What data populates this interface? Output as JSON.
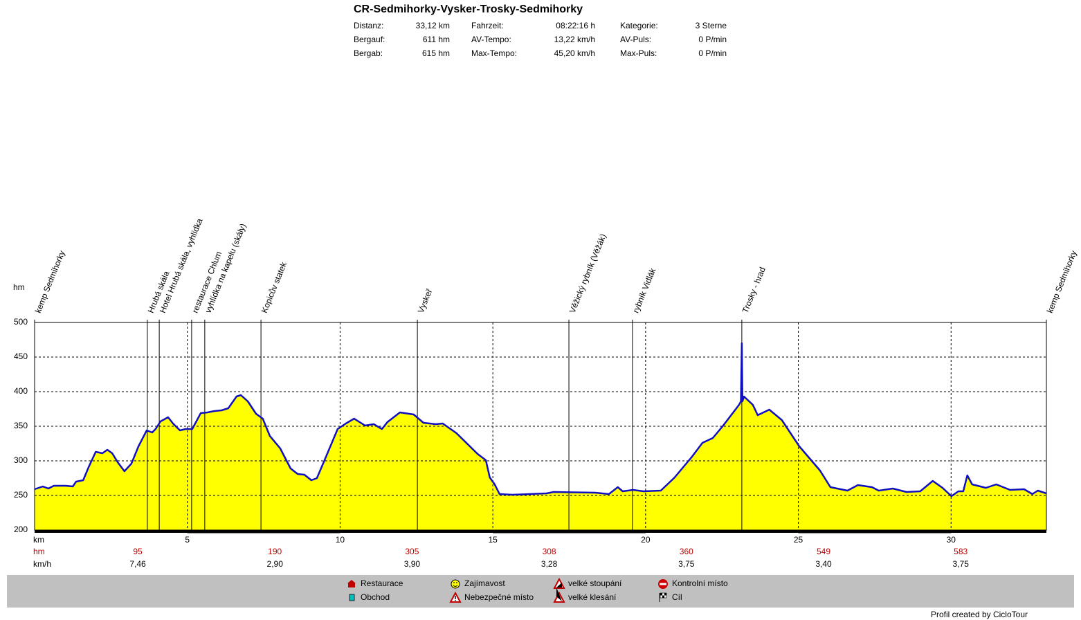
{
  "header": {
    "title": "CR-Sedmihorky-Vysker-Trosky-Sedmihorky",
    "stats": [
      [
        [
          "Distanz:",
          "33,12 km"
        ],
        [
          "Fahrzeit:",
          "08:22:16 h"
        ],
        [
          "Kategorie:",
          "3 Sterne"
        ]
      ],
      [
        [
          "Bergauf:",
          "611 hm"
        ],
        [
          "AV-Tempo:",
          "13,22 km/h"
        ],
        [
          "AV-Puls:",
          "0 P/min"
        ]
      ],
      [
        [
          "Bergab:",
          "615 hm"
        ],
        [
          "Max-Tempo:",
          "45,20 km/h"
        ],
        [
          "Max-Puls:",
          "0 P/min"
        ]
      ]
    ]
  },
  "chart_data": {
    "type": "area",
    "y_label": "hm",
    "x_label": "km",
    "color": "#ffff00",
    "line_color": "#1010c0",
    "grid": true,
    "xlim": [
      0,
      33.12
    ],
    "ylim": [
      200,
      500
    ],
    "xticks": [
      5,
      10,
      15,
      20,
      25,
      30
    ],
    "yticks": [
      200,
      250,
      300,
      350,
      400,
      450,
      500
    ],
    "x": [
      0,
      0.27,
      0.45,
      0.63,
      1.02,
      1.25,
      1.36,
      1.59,
      1.77,
      2.0,
      2.22,
      2.38,
      2.54,
      2.72,
      2.94,
      3.17,
      3.4,
      3.67,
      3.85,
      3.96,
      4.12,
      4.37,
      4.53,
      4.76,
      4.94,
      5.16,
      5.44,
      5.66,
      5.89,
      6.12,
      6.34,
      6.61,
      6.75,
      6.98,
      7.25,
      7.47,
      7.7,
      8.04,
      8.38,
      8.61,
      8.83,
      9.06,
      9.24,
      9.51,
      9.92,
      10.19,
      10.46,
      10.82,
      11.1,
      11.37,
      11.55,
      11.96,
      12.41,
      12.73,
      13.13,
      13.36,
      13.81,
      14.5,
      14.77,
      14.9,
      15.06,
      15.22,
      15.63,
      16.76,
      16.99,
      18.35,
      18.8,
      19.09,
      19.25,
      19.59,
      19.93,
      20.5,
      20.95,
      21.52,
      21.86,
      22.2,
      22.54,
      23.06,
      23.12,
      23.15,
      23.17,
      23.22,
      23.51,
      23.67,
      24.05,
      24.46,
      25.03,
      25.71,
      26.05,
      26.61,
      26.95,
      27.41,
      27.63,
      28.09,
      28.54,
      28.99,
      29.4,
      29.72,
      30.01,
      30.24,
      30.4,
      30.53,
      30.69,
      31.14,
      31.48,
      31.93,
      32.39,
      32.66,
      32.84,
      33.12
    ],
    "values": [
      259,
      263,
      260,
      264,
      264,
      263,
      270,
      272,
      291,
      313,
      311,
      316,
      311,
      298,
      285,
      296,
      321,
      344,
      341,
      346,
      357,
      363,
      354,
      344,
      346,
      346,
      369,
      370,
      372,
      373,
      376,
      393,
      395,
      386,
      368,
      361,
      336,
      318,
      289,
      281,
      280,
      272,
      275,
      303,
      346,
      354,
      361,
      351,
      353,
      346,
      356,
      370,
      367,
      355,
      353,
      354,
      340,
      310,
      301,
      276,
      266,
      252,
      251,
      253,
      255,
      254,
      252,
      262,
      256,
      258,
      256,
      257,
      276,
      306,
      326,
      333,
      351,
      381,
      386,
      470,
      386,
      393,
      381,
      366,
      374,
      359,
      321,
      286,
      262,
      257,
      265,
      262,
      257,
      260,
      255,
      256,
      271,
      261,
      249,
      256,
      256,
      279,
      266,
      261,
      266,
      258,
      259,
      252,
      257,
      253
    ],
    "waypoints": [
      {
        "name": "kemp Sedmihorky",
        "x": 0
      },
      {
        "name": "Hrubá skála",
        "x": 3.69
      },
      {
        "name": "Hotel Hrubá skála, vyhlídka",
        "x": 4.08
      },
      {
        "name": "restaurace Chlum",
        "x": 5.14
      },
      {
        "name": "vyhlídka na kapelu (skály)",
        "x": 5.57
      },
      {
        "name": "Kopicův statek",
        "x": 7.41
      },
      {
        "name": "Vyskeř",
        "x": 12.53
      },
      {
        "name": "Věžický rybník (Věžák)",
        "x": 17.49
      },
      {
        "name": "rybník Vidlák",
        "x": 19.57
      },
      {
        "name": "Trosky - hrad",
        "x": 23.15
      },
      {
        "name": "kemp Sedmihorky",
        "x": 33.12
      }
    ]
  },
  "summary": {
    "rows": [
      {
        "label": "hm",
        "values": [
          "95",
          "190",
          "305",
          "308",
          "360",
          "549",
          "583"
        ]
      },
      {
        "label": "km/h",
        "values": [
          "7,46",
          "2,90",
          "3,90",
          "3,28",
          "3,75",
          "3,40",
          "3,75"
        ]
      }
    ]
  },
  "legend": {
    "items": [
      "Restaurace",
      "Obchod",
      "Zajímavost",
      "Nebezpečné místo",
      "velké stoupání",
      "velké klesání",
      "Kontrolní místo",
      "Cíl"
    ]
  },
  "footer": "Profil created by CicloTour"
}
